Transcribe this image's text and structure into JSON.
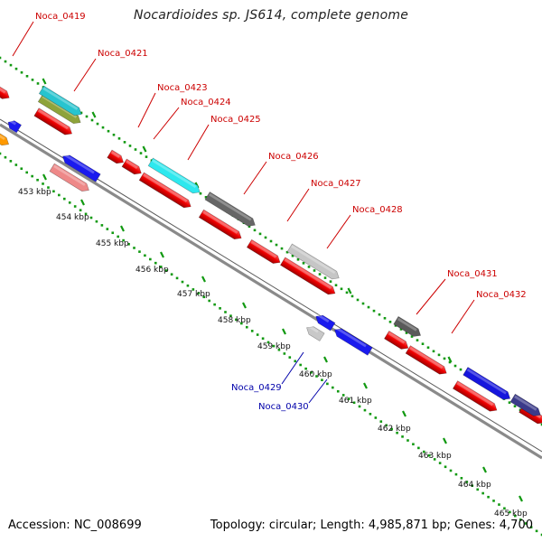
{
  "title": "Nocardioides sp. JS614, complete genome",
  "footer": {
    "accession": "Accession: NC_008699",
    "summary": "Topology: circular; Length: 4,985,871 bp; Genes: 4,700"
  },
  "colors": {
    "forward_label": "#cc0000",
    "reverse_label": "#0000aa",
    "dots": "#119911",
    "backbone": "#8a8a8a"
  },
  "tick_labels": [
    "453 kbp",
    "454 kbp",
    "455 kbp",
    "456 kbp",
    "457 kbp",
    "458 kbp",
    "459 kbp",
    "460 kbp",
    "461 kbp",
    "462 kbp",
    "463 kbp",
    "464 kbp",
    "465 kbp"
  ],
  "gene_labels": [
    {
      "id": "Noca_0419",
      "strand": "forward"
    },
    {
      "id": "Noca_0421",
      "strand": "forward"
    },
    {
      "id": "Noca_0423",
      "strand": "forward"
    },
    {
      "id": "Noca_0424",
      "strand": "forward"
    },
    {
      "id": "Noca_0425",
      "strand": "forward"
    },
    {
      "id": "Noca_0426",
      "strand": "forward"
    },
    {
      "id": "Noca_0427",
      "strand": "forward"
    },
    {
      "id": "Noca_0428",
      "strand": "forward"
    },
    {
      "id": "Noca_0431",
      "strand": "forward"
    },
    {
      "id": "Noca_0432",
      "strand": "forward"
    },
    {
      "id": "Noca_0429",
      "strand": "reverse"
    },
    {
      "id": "Noca_0430",
      "strand": "reverse"
    }
  ]
}
